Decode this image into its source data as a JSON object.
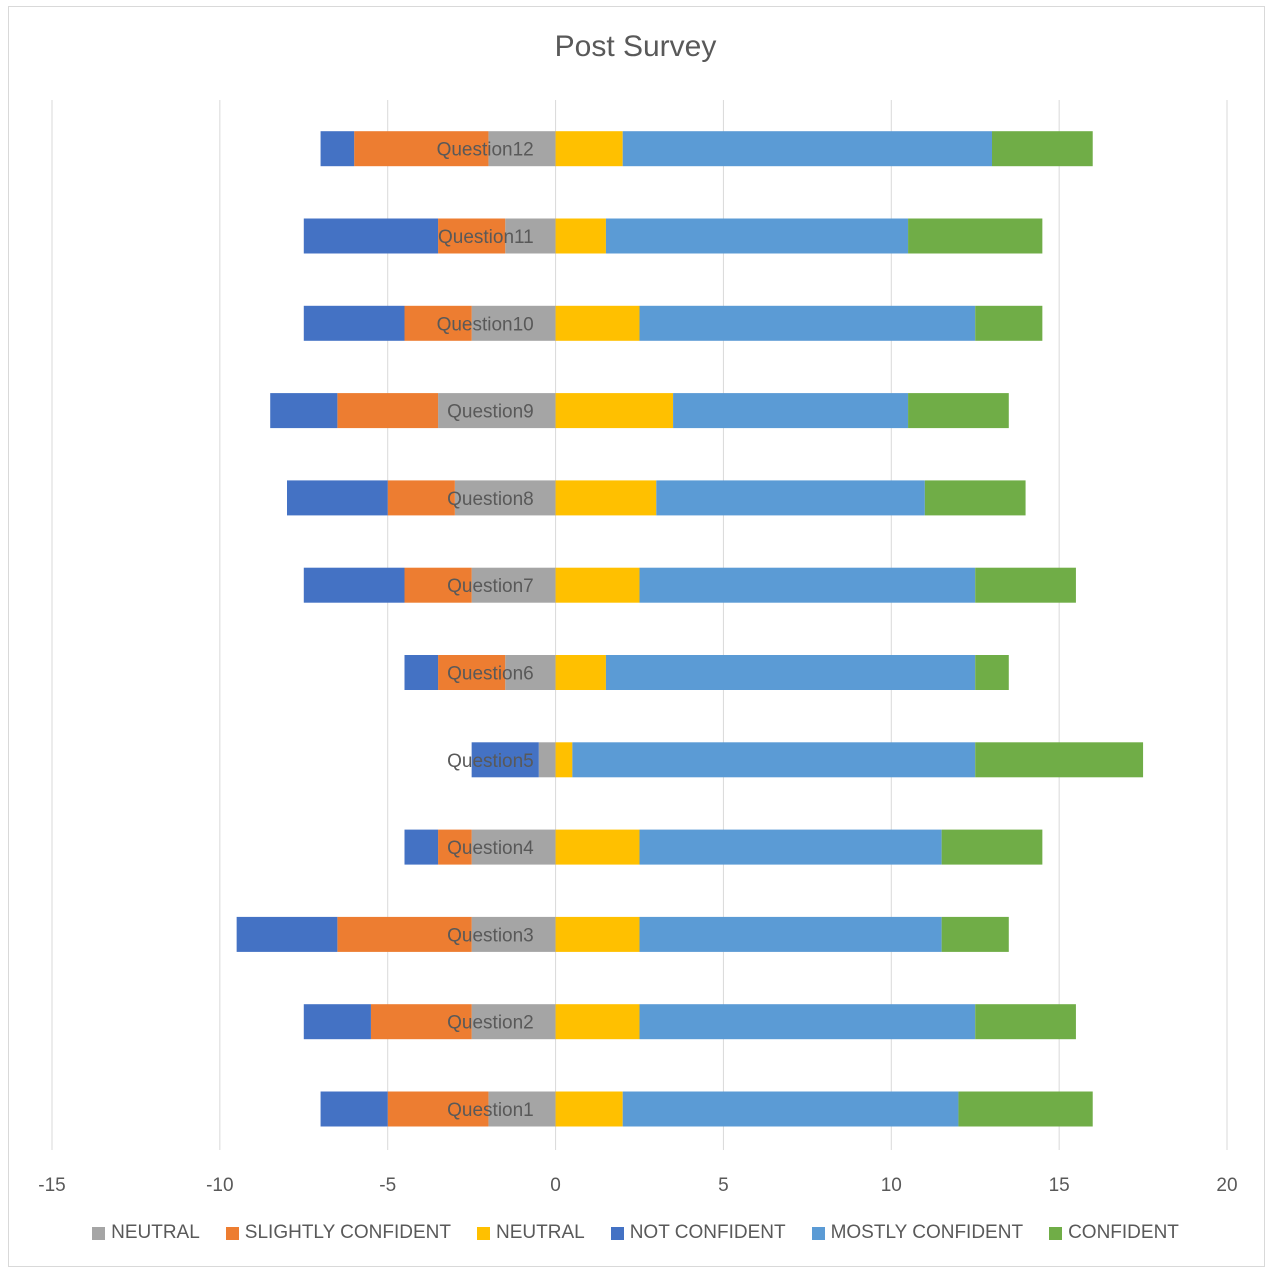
{
  "chart_data": {
    "type": "bar",
    "orientation": "horizontal",
    "stacked": "diverging",
    "title": "Post Survey",
    "xlabel": "",
    "ylabel": "",
    "xlim": [
      -15,
      20
    ],
    "xticks": [
      "-15",
      "-10",
      "-5",
      "0",
      "5",
      "10",
      "15",
      "20"
    ],
    "grid": true,
    "legend_position": "bottom",
    "categories": [
      "Question1",
      "Question2",
      "Question3",
      "Question4",
      "Question5",
      "Question6",
      "Question7",
      "Question8",
      "Question9",
      "Question10",
      "Question11",
      "Question12"
    ],
    "series": [
      {
        "name": "NEUTRAL",
        "color": "#a5a5a5",
        "values": [
          -2,
          -2.5,
          -2.5,
          -2.5,
          -0.5,
          -1.5,
          -2.5,
          -3,
          -3.5,
          -2.5,
          -1.5,
          -2
        ]
      },
      {
        "name": "SLIGHTLY CONFIDENT",
        "color": "#ed7d31",
        "values": [
          -3,
          -3,
          -4,
          -1,
          0,
          -2,
          -2,
          -2,
          -3,
          -2,
          -2,
          -4
        ]
      },
      {
        "name": "NEUTRAL",
        "color": "#ffc000",
        "values": [
          2,
          2.5,
          2.5,
          2.5,
          0.5,
          1.5,
          2.5,
          3,
          3.5,
          2.5,
          1.5,
          2
        ]
      },
      {
        "name": "NOT CONFIDENT",
        "color": "#4472c4",
        "values": [
          -2,
          -2,
          -3,
          -1,
          -2,
          -1,
          -3,
          -3,
          -2,
          -3,
          -4,
          -1
        ]
      },
      {
        "name": "MOSTLY CONFIDENT",
        "color": "#5b9bd5",
        "values": [
          10,
          10,
          9,
          9,
          12,
          11,
          10,
          8,
          7,
          10,
          9,
          11
        ]
      },
      {
        "name": "CONFIDENT",
        "color": "#70ad47",
        "values": [
          4,
          3,
          2,
          3,
          5,
          1,
          3,
          3,
          3,
          2,
          4,
          3
        ]
      }
    ]
  }
}
